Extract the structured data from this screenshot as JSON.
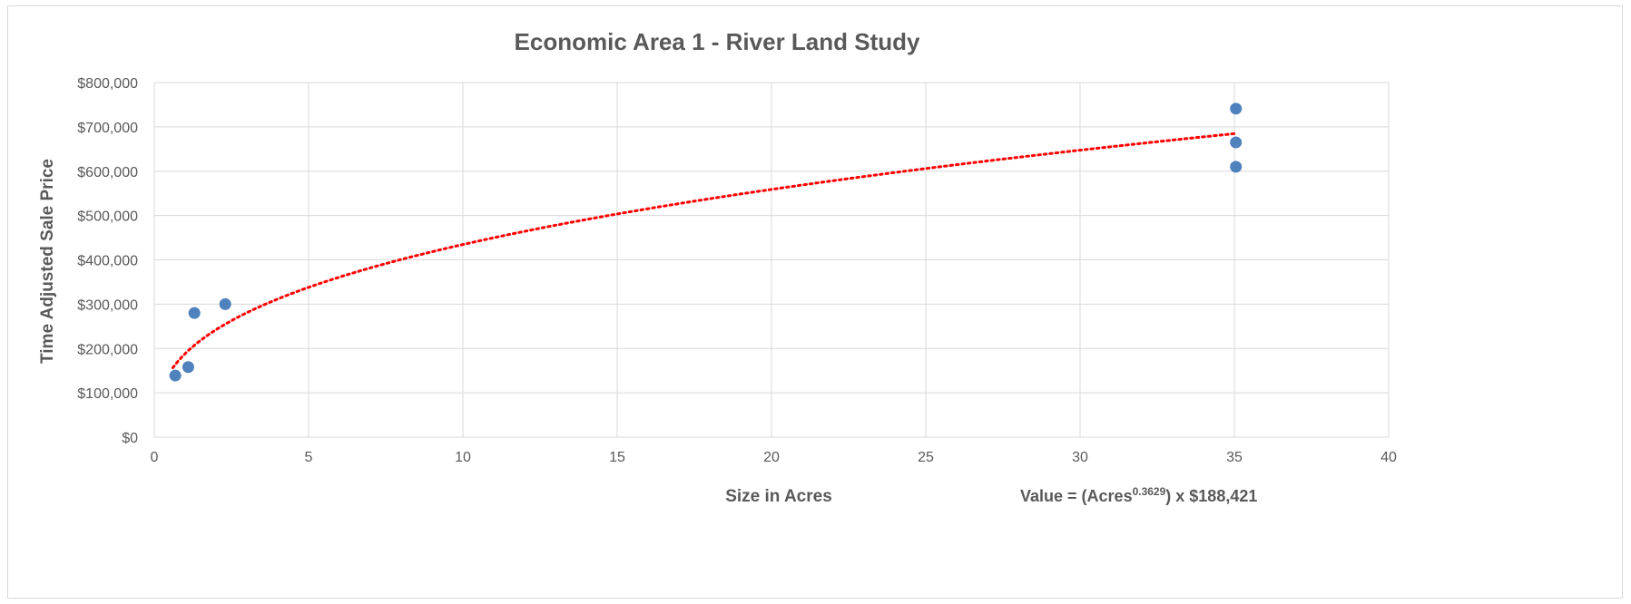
{
  "chart_data": {
    "type": "scatter",
    "title": "Economic Area 1 - River Land Study",
    "xlabel": "Size in Acres",
    "ylabel": "Time Adjusted Sale Price",
    "xlim": [
      0,
      40
    ],
    "ylim": [
      0,
      800000
    ],
    "x_ticks": [
      "0",
      "5",
      "10",
      "15",
      "20",
      "25",
      "30",
      "35",
      "40"
    ],
    "y_ticks": [
      "$0",
      "$100,000",
      "$200,000",
      "$300,000",
      "$400,000",
      "$500,000",
      "$600,000",
      "$700,000",
      "$800,000"
    ],
    "grid": true,
    "legend": "none",
    "point_color": "#4f81bd",
    "trendline_color": "#ff0000",
    "points": [
      {
        "x": 0.68,
        "y": 139000
      },
      {
        "x": 1.1,
        "y": 158000
      },
      {
        "x": 1.3,
        "y": 280000
      },
      {
        "x": 2.3,
        "y": 300000
      },
      {
        "x": 35.05,
        "y": 741000
      },
      {
        "x": 35.05,
        "y": 665000
      },
      {
        "x": 35.05,
        "y": 610000
      }
    ],
    "trendline": {
      "type": "power",
      "exponent": 0.3629,
      "coefficient": 188421,
      "x_range": [
        0.6,
        35.05
      ]
    },
    "annotation": {
      "prefix": "Value = (Acres",
      "superscript": "0.3629",
      "suffix": ") x $188,421"
    }
  }
}
